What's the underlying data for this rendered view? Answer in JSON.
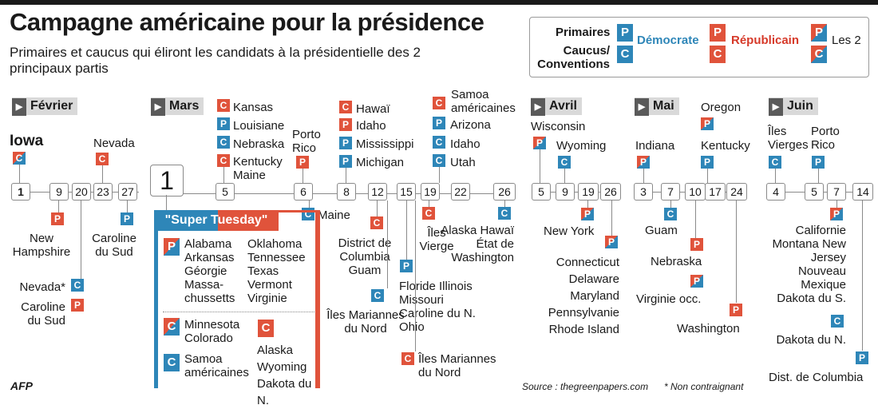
{
  "title": "Campagne américaine pour la présidence",
  "subtitle": "Primaires et caucus qui éliront les candidats à la présidentielle des 2 principaux partis",
  "legend": {
    "primaires": "Primaires",
    "caucus": "Caucus/ Conventions",
    "democrate": "Démocrate",
    "republicain": "Républicain",
    "les2": "Les 2",
    "p": "P",
    "c": "C"
  },
  "colors": {
    "democrat": "#2e86b8",
    "republican": "#e0533b"
  },
  "months": {
    "fev": "Février",
    "mar": "Mars",
    "avr": "Avril",
    "mai": "Mai",
    "jun": "Juin"
  },
  "days": {
    "fev": [
      "1",
      "9",
      "20",
      "23",
      "27"
    ],
    "mar": [
      "1",
      "5",
      "6",
      "8",
      "12",
      "15",
      "19",
      "22",
      "26"
    ],
    "avr": [
      "5",
      "9",
      "19",
      "26"
    ],
    "mai": [
      "3",
      "7",
      "10",
      "17",
      "24"
    ],
    "jun": [
      "4",
      "5",
      "7",
      "14"
    ]
  },
  "fev": {
    "iowa": "Iowa",
    "nevada_top": "Nevada",
    "new_hampshire": "New Hampshire",
    "caroline_top": "Caroline du Sud",
    "nevada_star": "Nevada*",
    "caroline_bottom": "Caroline du Sud"
  },
  "mar": {
    "kansas": "Kansas",
    "louisiane": "Louisiane",
    "nebraska": "Nebraska",
    "kentucky_maine": "Kentucky Maine",
    "porto_rico": "Porto Rico",
    "maine": "Maine",
    "hawai": "Hawaï",
    "idaho": "Idaho",
    "mississippi": "Mississippi",
    "michigan": "Michigan",
    "dc_guam": "District de Columbia Guam",
    "samoa": "Samoa américaines",
    "arizona": "Arizona",
    "idaho2": "Idaho",
    "utah": "Utah",
    "iles_vierge": "Îles Vierge",
    "alaska_hawai_wa": "Alaska Hawaï État de Washington",
    "florida_group": "Floride Illinois Missouri Caroline du N. Ohio",
    "mariannes_bleu": "Îles Mariannes du Nord",
    "mariannes_rouge": "Îles Mariannes du Nord",
    "super_tuesday": "\"Super Tuesday\"",
    "st_p_col1": "Alabama Arkansas Géorgie Massa- chussetts",
    "st_p_col2": "Oklahoma Tennessee Texas Vermont Virginie",
    "st_c_blue": "Minnesota Colorado",
    "st_c_blue2": "Samoa américaines",
    "st_c_red": "Alaska Wyoming Dakota du N."
  },
  "avr": {
    "wisconsin": "Wisconsin",
    "wyoming": "Wyoming",
    "new_york": "New York",
    "group": "Connecticut Delaware Maryland Pennsylvanie Rhode Island"
  },
  "mai": {
    "indiana": "Indiana",
    "oregon": "Oregon",
    "kentucky": "Kentucky",
    "guam": "Guam",
    "nebraska": "Nebraska",
    "virginie": "Virginie occ.",
    "washington": "Washington"
  },
  "jun": {
    "iles_vierges": "Îles Vierges",
    "porto_rico": "Porto Rico",
    "group": "Californie Montana New Jersey Nouveau Mexique Dakota du S.",
    "dakota_n": "Dakota du N.",
    "dc": "Dist. de Columbia"
  },
  "footer": {
    "source": "Source : thegreenpapers.com",
    "note": "* Non contraignant",
    "logo": "AFP"
  }
}
